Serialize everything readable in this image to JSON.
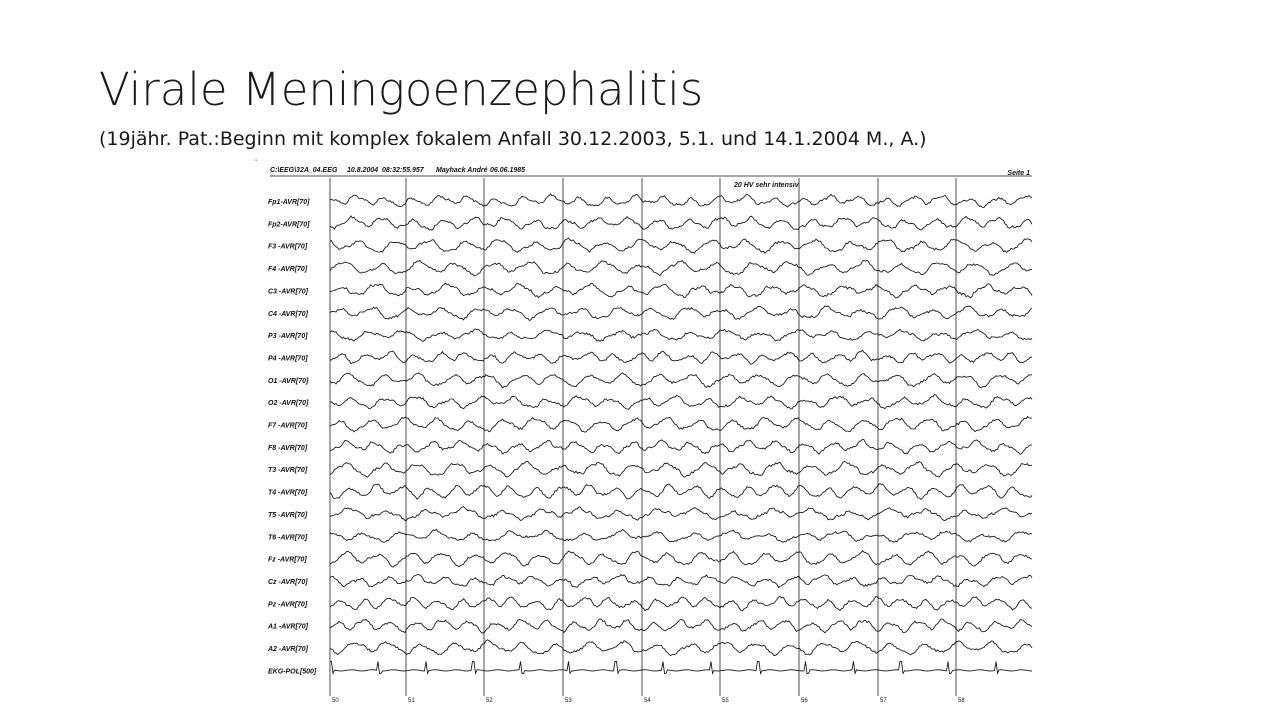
{
  "slide": {
    "title": "Virale Meningoenzephalitis",
    "subtitle": "(19jähr. Pat.:Beginn mit komplex fokalem Anfall  30.12.2003, 5.1. und 14.1.2004 M., A.)"
  },
  "eeg": {
    "stray_mark": "¨",
    "header": {
      "file": "C:\\EEG\\32A_04.EEG",
      "date": "10.8.2004",
      "time": "08:32:55.957",
      "patient": "Mayhack André",
      "birthdate": "06.06.1985",
      "page": "Seite 1"
    },
    "annotation": "20  HV sehr intensiv",
    "channels": [
      "Fp1-AVR[70]",
      "Fp2-AVR[70]",
      "F3 -AVR[70]",
      "F4 -AVR[70]",
      "C3 -AVR[70]",
      "C4 -AVR[70]",
      "P3 -AVR[70]",
      "P4 -AVR[70]",
      "O1 -AVR[70]",
      "O2 -AVR[70]",
      "F7 -AVR[70]",
      "F8 -AVR[70]",
      "T3 -AVR[70]",
      "T4 -AVR[70]",
      "T5 -AVR[70]",
      "T6 -AVR[70]",
      "Fz -AVR[70]",
      "Cz -AVR[70]",
      "Pz -AVR[70]",
      "A1 -AVR[70]",
      "A2 -AVR[70]",
      "EKG-POL[500]"
    ],
    "seconds": [
      "50",
      "51",
      "52",
      "53",
      "54",
      "55",
      "56",
      "57",
      "58"
    ]
  }
}
